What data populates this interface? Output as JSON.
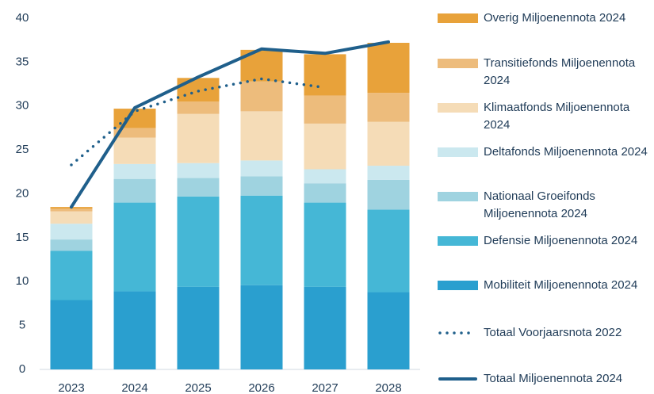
{
  "chart_data": {
    "type": "stacked-bar",
    "categories": [
      "2023",
      "2024",
      "2025",
      "2026",
      "2027",
      "2028"
    ],
    "series": [
      {
        "name": "Mobiliteit Miljoenennota 2024",
        "color": "#2a9fcf",
        "values": [
          7.9,
          8.9,
          9.4,
          9.6,
          9.4,
          8.8
        ]
      },
      {
        "name": "Defensie Miljoenennota 2024",
        "color": "#45b7d6",
        "values": [
          5.6,
          10.1,
          10.3,
          10.2,
          9.6,
          9.4
        ]
      },
      {
        "name": "Nationaal Groeifonds Miljoenennota 2024",
        "color": "#9fd3e0",
        "values": [
          1.3,
          2.7,
          2.1,
          2.2,
          2.2,
          3.4
        ]
      },
      {
        "name": "Deltafonds Miljoenennota 2024",
        "color": "#cbe8ef",
        "values": [
          1.8,
          1.7,
          1.7,
          1.8,
          1.6,
          1.6
        ]
      },
      {
        "name": "Klimaatfonds Miljoenennota 2024",
        "color": "#f5dcb7",
        "values": [
          1.4,
          3.0,
          5.6,
          5.6,
          5.2,
          5.0
        ]
      },
      {
        "name": "Transitiefonds Miljoenennota 2024",
        "color": "#edbc7c",
        "values": [
          0.3,
          1.1,
          1.4,
          3.4,
          3.2,
          3.3
        ]
      },
      {
        "name": "Overig Miljoenennota 2024",
        "color": "#e8a23a",
        "values": [
          0.2,
          2.2,
          2.7,
          3.6,
          4.7,
          5.7
        ]
      }
    ],
    "lines": [
      {
        "name": "Totaal Voorjaarsnota 2022",
        "color": "#1f5f8b",
        "dashed": true,
        "values": [
          23.3,
          29.4,
          31.7,
          33.1,
          32.1,
          null
        ]
      },
      {
        "name": "Totaal Miljoenennota 2024",
        "color": "#1f5f8b",
        "dashed": false,
        "values": [
          18.5,
          29.8,
          33.3,
          36.5,
          36.0,
          37.3
        ]
      }
    ],
    "ylim": [
      0,
      40
    ],
    "yticks": [
      0,
      5,
      10,
      15,
      20,
      25,
      30,
      35,
      40
    ]
  }
}
